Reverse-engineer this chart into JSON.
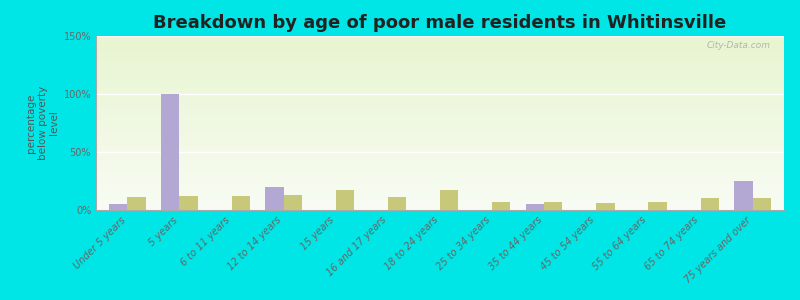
{
  "title": "Breakdown by age of poor male residents in Whitinsville",
  "ylabel": "percentage\nbelow poverty\nlevel",
  "categories": [
    "Under 5 years",
    "5 years",
    "6 to 11 years",
    "12 to 14 years",
    "15 years",
    "16 and 17 years",
    "18 to 24 years",
    "25 to 34 years",
    "35 to 44 years",
    "45 to 54 years",
    "55 to 64 years",
    "65 to 74 years",
    "75 years and over"
  ],
  "whitinsville_values": [
    5,
    100,
    0,
    20,
    0,
    0,
    0,
    0,
    5,
    0,
    0,
    0,
    25
  ],
  "massachusetts_values": [
    11,
    12,
    12,
    13,
    17,
    11,
    17,
    7,
    7,
    6,
    7,
    10,
    10
  ],
  "whitinsville_color": "#b3a8d4",
  "massachusetts_color": "#c8c87a",
  "ylim": [
    0,
    150
  ],
  "yticks": [
    0,
    50,
    100,
    150
  ],
  "ytick_labels": [
    "0%",
    "50%",
    "100%",
    "150%"
  ],
  "outer_bg": "#00e5e5",
  "bar_width": 0.35,
  "title_fontsize": 13,
  "axis_label_fontsize": 7.5,
  "tick_label_fontsize": 7,
  "watermark": "City-Data.com"
}
